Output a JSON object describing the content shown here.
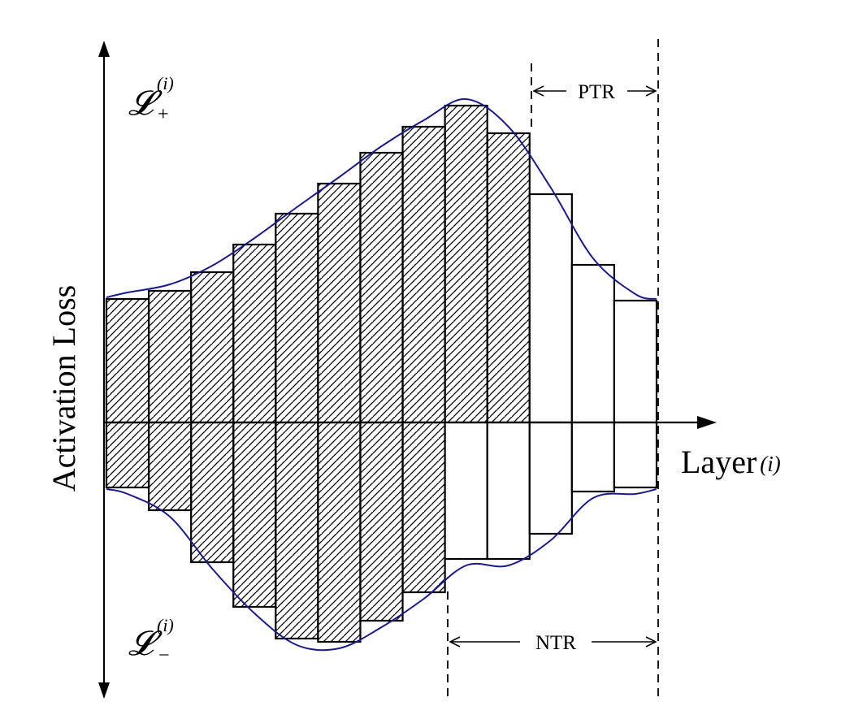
{
  "labels": {
    "y_axis": "Activation Loss",
    "x_axis": "Layer",
    "x_axis_var": "(i)",
    "upper_loss_symbol": "𝓛",
    "upper_loss_sup": "(i)",
    "upper_loss_sub": "+",
    "lower_loss_symbol": "𝓛",
    "lower_loss_sup": "(i)",
    "lower_loss_sub": "−",
    "ptr": "PTR",
    "ntr": "NTR"
  },
  "chart_data": {
    "type": "bar",
    "layers": 13,
    "positive_values": [
      152,
      162,
      185,
      219,
      257,
      294,
      332,
      364,
      390,
      356,
      281,
      194,
      150
    ],
    "negative_values": [
      80,
      108,
      172,
      227,
      266,
      270,
      244,
      209,
      168,
      168,
      137,
      85,
      80
    ],
    "positive_hatched": [
      true,
      true,
      true,
      true,
      true,
      true,
      true,
      true,
      true,
      true,
      false,
      false,
      false
    ],
    "negative_hatched": [
      true,
      true,
      true,
      true,
      true,
      true,
      true,
      true,
      false,
      false,
      false,
      false,
      false
    ],
    "colors": {
      "envelope": "#1a1a8c",
      "bar_stroke": "#000000",
      "hatch": "#000000"
    }
  }
}
